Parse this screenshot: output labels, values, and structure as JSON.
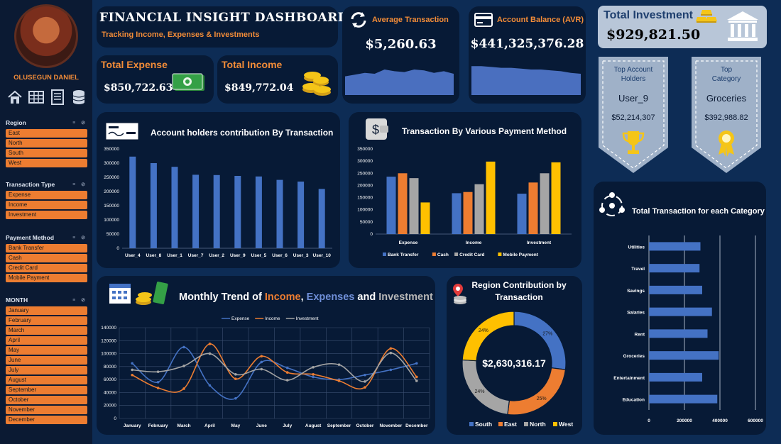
{
  "sidebar": {
    "user_name": "OLUSEGUN DANIEL",
    "nav_icons": [
      "home-icon",
      "table-icon",
      "list-icon",
      "database-icon"
    ],
    "slicers": [
      {
        "title": "Region",
        "items": [
          "East",
          "North",
          "South",
          "West"
        ]
      },
      {
        "title": "Transaction Type",
        "items": [
          "Expense",
          "Income",
          "Investment"
        ]
      },
      {
        "title": "Payment Method",
        "items": [
          "Bank Transfer",
          "Cash",
          "Credit Card",
          "Mobile Payment"
        ]
      },
      {
        "title": "MONTH",
        "items": [
          "January",
          "February",
          "March",
          "April",
          "May",
          "June",
          "July",
          "August",
          "September",
          "October",
          "November",
          "December"
        ]
      }
    ]
  },
  "header": {
    "title": "FINANCIAL INSIGHT DASHBOARD",
    "subtitle": "Tracking Income, Expenses & Investments"
  },
  "kpis": {
    "total_expense_label": "Total Expense",
    "total_expense_value": "$850,722.63",
    "total_income_label": "Total Income",
    "total_income_value": "$849,772.04",
    "avg_transaction_label": "Average Transaction",
    "avg_transaction_value": "$5,260.63",
    "account_balance_label": "Account Balance (AVR)",
    "account_balance_value": "$441,325,376.28",
    "total_investment_label": "Total Investment",
    "total_investment_value": "$929,821.50"
  },
  "top_account": {
    "title_line1": "Top Account",
    "title_line2": "Holders",
    "name": "User_9",
    "value": "$52,214,307"
  },
  "top_category": {
    "title_line1": "Top",
    "title_line2": "Category",
    "name": "Groceries",
    "value": "$392,988.82"
  },
  "colors": {
    "orange": "#ed7d31",
    "blue": "#4472c4",
    "gray": "#a5a5a5",
    "yellow": "#ffc000",
    "accent": "#f28c38"
  },
  "chart_data": [
    {
      "type": "bar",
      "title": "Account holders contribution By Transaction",
      "categories": [
        "User_4",
        "User_8",
        "User_1",
        "User_7",
        "User_2",
        "User_9",
        "User_5",
        "User_6",
        "User_3",
        "User_10"
      ],
      "values": [
        323000,
        300000,
        287000,
        259000,
        258000,
        255000,
        253000,
        241000,
        235000,
        209000
      ],
      "y_ticks": [
        "0",
        "50000",
        "100000",
        "150000",
        "200000",
        "250000",
        "300000",
        "350000"
      ],
      "ylim": [
        0,
        350000
      ]
    },
    {
      "type": "bar",
      "title": "Transaction By Various Payment Method",
      "categories": [
        "Expense",
        "Income",
        "Investment"
      ],
      "series": [
        {
          "name": "Bank Transfer",
          "values": [
            236000,
            168000,
            166000
          ]
        },
        {
          "name": "Cash",
          "values": [
            250000,
            173000,
            212000
          ]
        },
        {
          "name": "Credit Card",
          "values": [
            230000,
            205000,
            250000
          ]
        },
        {
          "name": "Mobile Payment",
          "values": [
            130000,
            298000,
            295000
          ]
        }
      ],
      "y_ticks": [
        "0",
        "50000",
        "100000",
        "150000",
        "200000",
        "250000",
        "300000",
        "350000"
      ],
      "ylim": [
        0,
        350000
      ]
    },
    {
      "type": "line",
      "title_parts": [
        "Monthly Trend of ",
        "Income",
        ", ",
        "Expenses",
        " and ",
        "Investment"
      ],
      "categories": [
        "January",
        "February",
        "March",
        "April",
        "May",
        "June",
        "July",
        "August",
        "September",
        "October",
        "November",
        "December"
      ],
      "series": [
        {
          "name": "Expense",
          "values": [
            85000,
            56000,
            110000,
            51000,
            31000,
            87000,
            78000,
            64000,
            60000,
            67000,
            75000,
            85000
          ]
        },
        {
          "name": "Income",
          "values": [
            67000,
            47000,
            46000,
            115000,
            61000,
            96000,
            71000,
            68000,
            58000,
            48000,
            108000,
            64000
          ]
        },
        {
          "name": "Investment",
          "values": [
            75000,
            72000,
            81000,
            100000,
            68000,
            76000,
            59000,
            79000,
            83000,
            57000,
            101000,
            58000
          ]
        }
      ],
      "y_ticks": [
        "0",
        "20000",
        "40000",
        "60000",
        "80000",
        "100000",
        "120000",
        "140000"
      ],
      "ylim": [
        0,
        140000
      ]
    },
    {
      "type": "pie",
      "title_line1": "Region Contribution by",
      "title_line2": "Transaction",
      "center_label": "$2,630,316.17",
      "labels": [
        "South",
        "East",
        "North",
        "West"
      ],
      "values": [
        27,
        25,
        24,
        24
      ],
      "value_labels": [
        "27%",
        "25%",
        "24%",
        "24%"
      ]
    },
    {
      "type": "bar",
      "title": "Total Transaction for each Category",
      "categories": [
        "Utilities",
        "Travel",
        "Savings",
        "Salaries",
        "Rent",
        "Groceries",
        "Entertainment",
        "Education"
      ],
      "values": [
        290000,
        285000,
        300000,
        355000,
        330000,
        393000,
        300000,
        385000
      ],
      "x_ticks": [
        "0",
        "200000",
        "400000",
        "600000"
      ],
      "xlim": [
        0,
        600000
      ]
    }
  ],
  "sparklines": {
    "avg_transaction": [
      22,
      24,
      26,
      25,
      30,
      28,
      27,
      30,
      29,
      26,
      28,
      25
    ],
    "account_balance": [
      34,
      34,
      33,
      32,
      32,
      31,
      30,
      30,
      29,
      28,
      26,
      25
    ]
  }
}
